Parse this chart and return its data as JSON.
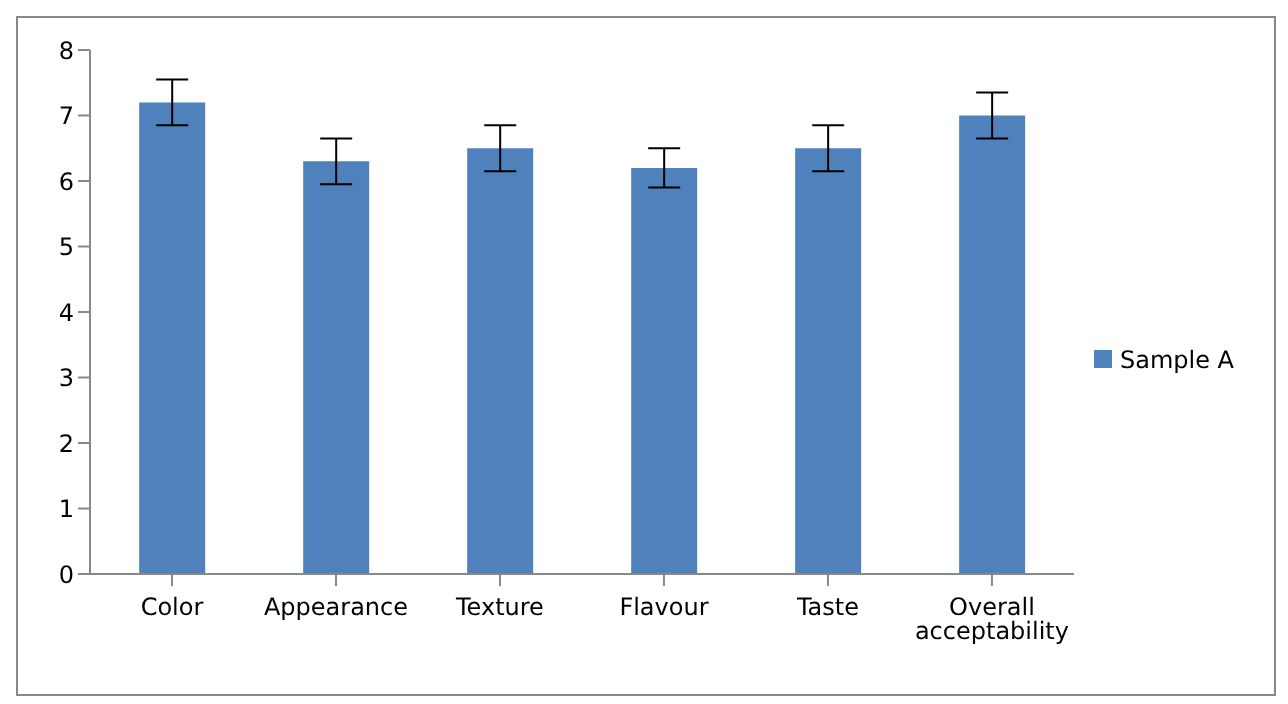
{
  "chart_data": {
    "type": "bar",
    "categories": [
      "Color",
      "Appearance",
      "Texture",
      "Flavour",
      "Taste",
      "Overall acceptability"
    ],
    "series": [
      {
        "name": "Sample A",
        "color": "#4f81bd",
        "values": [
          7.2,
          6.3,
          6.5,
          6.2,
          6.5,
          7.0
        ],
        "errors": [
          0.35,
          0.35,
          0.35,
          0.3,
          0.35,
          0.35
        ]
      }
    ],
    "ylim": [
      0,
      8
    ],
    "yticks": [
      0,
      1,
      2,
      3,
      4,
      5,
      6,
      7,
      8
    ],
    "grid": false,
    "legend": "right"
  }
}
